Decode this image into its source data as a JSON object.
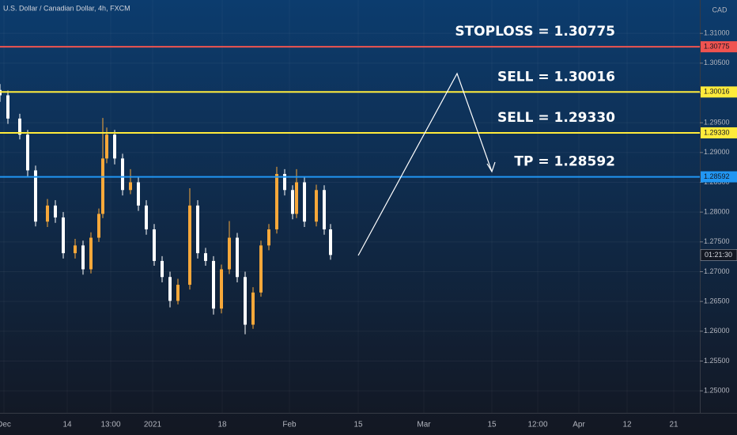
{
  "chart_data": {
    "type": "candlestick",
    "title": "U.S. Dollar / Canadian Dollar, 4h, FXCM",
    "currency": "CAD",
    "countdown": "01:21:30",
    "xlim": [
      0,
      885
    ],
    "xticks": [
      {
        "value": 5,
        "label": "Dec"
      },
      {
        "value": 85,
        "label": "14"
      },
      {
        "value": 140,
        "label": "13:00"
      },
      {
        "value": 193,
        "label": "2021"
      },
      {
        "value": 281,
        "label": "18"
      },
      {
        "value": 366,
        "label": "Feb"
      },
      {
        "value": 453,
        "label": "15"
      },
      {
        "value": 536,
        "label": "Mar"
      },
      {
        "value": 622,
        "label": "15"
      },
      {
        "value": 680,
        "label": "12:00"
      },
      {
        "value": 732,
        "label": "Apr"
      },
      {
        "value": 793,
        "label": "12"
      },
      {
        "value": 852,
        "label": "21"
      }
    ],
    "ylim": [
      1.2463,
      1.3156
    ],
    "yticks": [
      {
        "value": 1.25,
        "label": "1.25000"
      },
      {
        "value": 1.255,
        "label": "1.25500"
      },
      {
        "value": 1.26,
        "label": "1.26000"
      },
      {
        "value": 1.265,
        "label": "1.26500"
      },
      {
        "value": 1.27,
        "label": "1.27000"
      },
      {
        "value": 1.275,
        "label": "1.27500"
      },
      {
        "value": 1.28,
        "label": "1.28000"
      },
      {
        "value": 1.285,
        "label": "1.28500"
      },
      {
        "value": 1.29,
        "label": "1.29000"
      },
      {
        "value": 1.295,
        "label": "1.29500"
      },
      {
        "value": 1.3,
        "label": "1.30000"
      },
      {
        "value": 1.305,
        "label": "1.30500"
      },
      {
        "value": 1.31,
        "label": "1.31000"
      }
    ],
    "grid": true,
    "up_color": "#f7a83a",
    "down_color": "#ffffff",
    "x": [
      0,
      10,
      25,
      35,
      45,
      60,
      70,
      80,
      95,
      105,
      115,
      125,
      130,
      135,
      145,
      155,
      165,
      175,
      185,
      195,
      205,
      215,
      225,
      240,
      250,
      260,
      270,
      280,
      290,
      300,
      310,
      320,
      330,
      340,
      350,
      360,
      370,
      375,
      385,
      400,
      410,
      418
    ],
    "open": [
      1.3005,
      1.2996,
      1.2957,
      1.293,
      1.287,
      1.2784,
      1.2811,
      1.2791,
      1.2731,
      1.2744,
      1.2704,
      1.2757,
      1.2797,
      1.289,
      1.293,
      1.289,
      1.2837,
      1.285,
      1.2811,
      1.2771,
      1.2718,
      1.2691,
      1.2651,
      1.2678,
      1.2811,
      1.2731,
      1.2718,
      1.2638,
      1.2704,
      1.2757,
      1.2691,
      1.2611,
      1.2665,
      1.2744,
      1.2771,
      1.2864,
      1.2837,
      1.2797,
      1.285,
      1.2784,
      1.2837,
      1.2771
    ],
    "high": [
      1.3015,
      1.3004,
      1.2965,
      1.2938,
      1.2878,
      1.2822,
      1.282,
      1.28,
      1.2755,
      1.2752,
      1.2766,
      1.2806,
      1.2958,
      1.2942,
      1.2938,
      1.2898,
      1.2872,
      1.2858,
      1.282,
      1.278,
      1.2726,
      1.27,
      1.2688,
      1.284,
      1.282,
      1.274,
      1.2726,
      1.2712,
      1.2785,
      1.2765,
      1.27,
      1.2674,
      1.2752,
      1.278,
      1.2876,
      1.2872,
      1.2845,
      1.2872,
      1.2858,
      1.2846,
      1.2845,
      1.278
    ],
    "low": [
      1.2985,
      1.2948,
      1.2922,
      1.286,
      1.2776,
      1.2775,
      1.2782,
      1.2722,
      1.2722,
      1.2695,
      1.2697,
      1.275,
      1.279,
      1.2882,
      1.288,
      1.2828,
      1.283,
      1.2802,
      1.2762,
      1.271,
      1.2682,
      1.264,
      1.2645,
      1.267,
      1.2722,
      1.271,
      1.2628,
      1.263,
      1.2696,
      1.2682,
      1.2595,
      1.2604,
      1.2658,
      1.2736,
      1.2764,
      1.2828,
      1.2788,
      1.279,
      1.2775,
      1.2776,
      1.2762,
      1.272
    ],
    "close": [
      1.2996,
      1.2957,
      1.293,
      1.287,
      1.2784,
      1.2811,
      1.2791,
      1.2731,
      1.2744,
      1.2704,
      1.2757,
      1.2797,
      1.289,
      1.293,
      1.289,
      1.2837,
      1.285,
      1.2811,
      1.2771,
      1.2718,
      1.2691,
      1.2651,
      1.2678,
      1.2811,
      1.2731,
      1.2718,
      1.2638,
      1.2704,
      1.2757,
      1.2691,
      1.2611,
      1.2665,
      1.2744,
      1.2771,
      1.2864,
      1.2837,
      1.2797,
      1.285,
      1.2784,
      1.2837,
      1.2771,
      1.2728
    ],
    "levels": [
      {
        "name": "STOPLOSS = 1.30775",
        "value": 1.30775,
        "label": "1.30775",
        "color": "#ef5350"
      },
      {
        "name": "SELL = 1.30016",
        "value": 1.30016,
        "label": "1.30016",
        "color": "#ffeb3b"
      },
      {
        "name": "SELL = 1.29330",
        "value": 1.2933,
        "label": "1.29330",
        "color": "#ffeb3b"
      },
      {
        "name": "TP = 1.28592",
        "value": 1.28592,
        "label": "1.28592",
        "color": "#2196f3"
      }
    ]
  }
}
